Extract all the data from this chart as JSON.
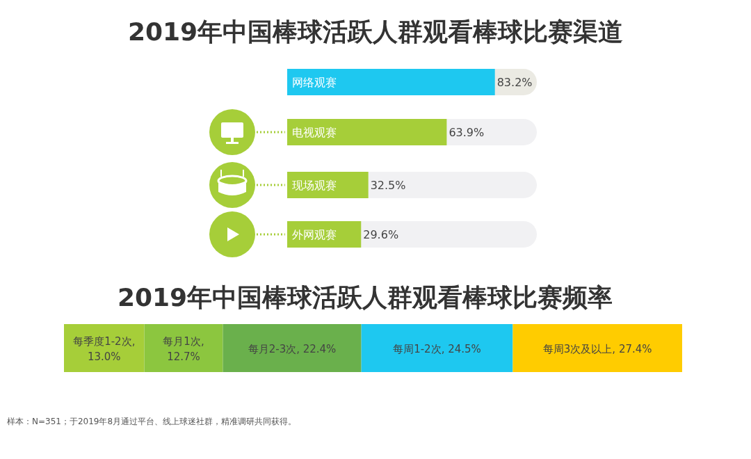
{
  "chart_data": [
    {
      "type": "bar",
      "orientation": "horizontal",
      "title": "2019年中国棒球活跃人群观看棒球比赛渠道",
      "categories": [
        "网络观赛",
        "电视观赛",
        "现场观赛",
        "外网观赛"
      ],
      "values": [
        83.2,
        63.9,
        32.5,
        29.6
      ],
      "colors": [
        "#1ec8f0",
        "#a6ce39",
        "#a6ce39",
        "#a6ce39"
      ],
      "value_labels": [
        "83.2%",
        "63.9%",
        "32.5%",
        "29.6%"
      ],
      "xlim": [
        0,
        100
      ]
    },
    {
      "type": "bar",
      "orientation": "horizontal",
      "stacked": true,
      "title": "2019年中国棒球活跃人群观看棒球比赛频率",
      "categories": [
        null
      ],
      "series": [
        {
          "color": "#a6ce39",
          "values": [
            13.0
          ],
          "value_labels": [
            "每季度1-2次, 13.0%"
          ]
        },
        {
          "color": "#8cc63f",
          "values": [
            12.7
          ],
          "value_labels": [
            "每月1次, 12.7%"
          ]
        },
        {
          "color": "#6ab04c",
          "values": [
            22.4
          ],
          "value_labels": [
            "每月2-3次, 22.4%"
          ]
        },
        {
          "color": "#1ec8f0",
          "values": [
            24.5
          ],
          "value_labels": [
            "每周1-2次, 24.5%"
          ]
        },
        {
          "color": "#ffcc00",
          "values": [
            27.4
          ],
          "value_labels": [
            "每周3次及以上, 27.4%"
          ]
        }
      ],
      "annotations": [
        "样本：N=351；于2019年8月通过平台、线上球迷社群，精准调研共同获得。"
      ]
    }
  ]
}
